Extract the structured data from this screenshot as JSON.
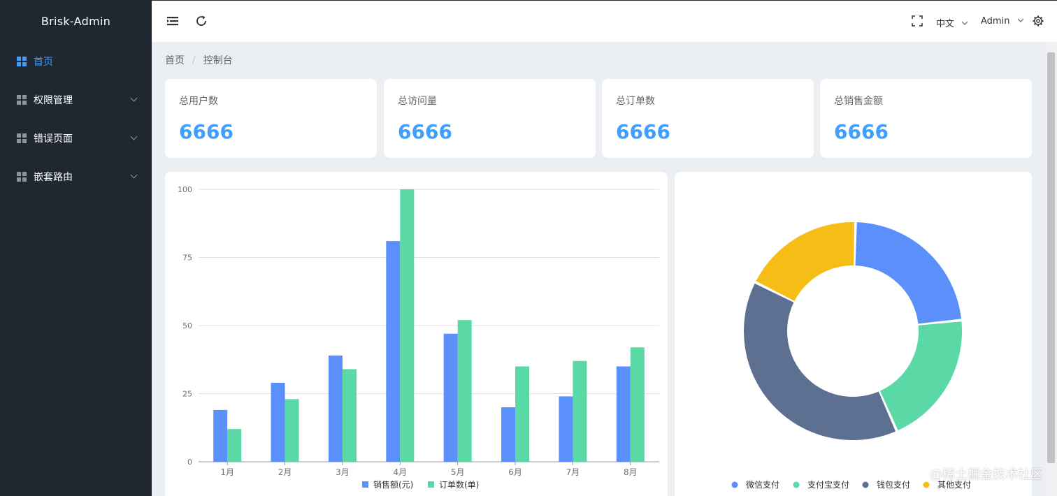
{
  "sidebar": {
    "logo": "Brisk-Admin",
    "items": [
      {
        "label": "首页",
        "active": true,
        "expandable": false
      },
      {
        "label": "权限管理",
        "active": false,
        "expandable": true
      },
      {
        "label": "错误页面",
        "active": false,
        "expandable": true
      },
      {
        "label": "嵌套路由",
        "active": false,
        "expandable": true
      }
    ]
  },
  "header": {
    "language": "中文",
    "user": "Admin",
    "icons": [
      "hamburger-icon",
      "refresh-icon",
      "fullscreen-icon",
      "gear-icon"
    ]
  },
  "breadcrumb": {
    "home": "首页",
    "separator": "/",
    "current": "控制台"
  },
  "stats": [
    {
      "label": "总用户数",
      "value": "6666"
    },
    {
      "label": "总访问量",
      "value": "6666"
    },
    {
      "label": "总订单数",
      "value": "6666"
    },
    {
      "label": "总销售金额",
      "value": "6666"
    }
  ],
  "colors": {
    "accent": "#409eff",
    "sidebar_bg": "#1f2831",
    "blue": "#5b8ff9",
    "green": "#5ad8a6",
    "slate": "#5d7092",
    "yellow": "#f6bd16"
  },
  "chart_data": [
    {
      "type": "bar",
      "categories": [
        "1月",
        "2月",
        "3月",
        "4月",
        "5月",
        "6月",
        "7月",
        "8月"
      ],
      "series": [
        {
          "name": "销售额(元)",
          "color": "#5b8ff9",
          "values": [
            19,
            29,
            39,
            81,
            47,
            20,
            24,
            35
          ]
        },
        {
          "name": "订单数(单)",
          "color": "#5ad8a6",
          "values": [
            12,
            23,
            34,
            100,
            52,
            35,
            37,
            42
          ]
        }
      ],
      "ylim": [
        0,
        100
      ],
      "yticks": [
        0,
        25,
        50,
        75,
        100
      ],
      "grid": true,
      "legend": "bottom-center"
    },
    {
      "type": "pie",
      "variant": "donut",
      "slices": [
        {
          "name": "微信支付",
          "value": 23,
          "color": "#5b8ff9"
        },
        {
          "name": "支付宝支付",
          "value": 20,
          "color": "#5ad8a6"
        },
        {
          "name": "钱包支付",
          "value": 39,
          "color": "#5d7092"
        },
        {
          "name": "其他支付",
          "value": 18,
          "color": "#f6bd16"
        }
      ],
      "legend": "bottom-center"
    }
  ],
  "watermark": "@稀土掘金技术社区"
}
